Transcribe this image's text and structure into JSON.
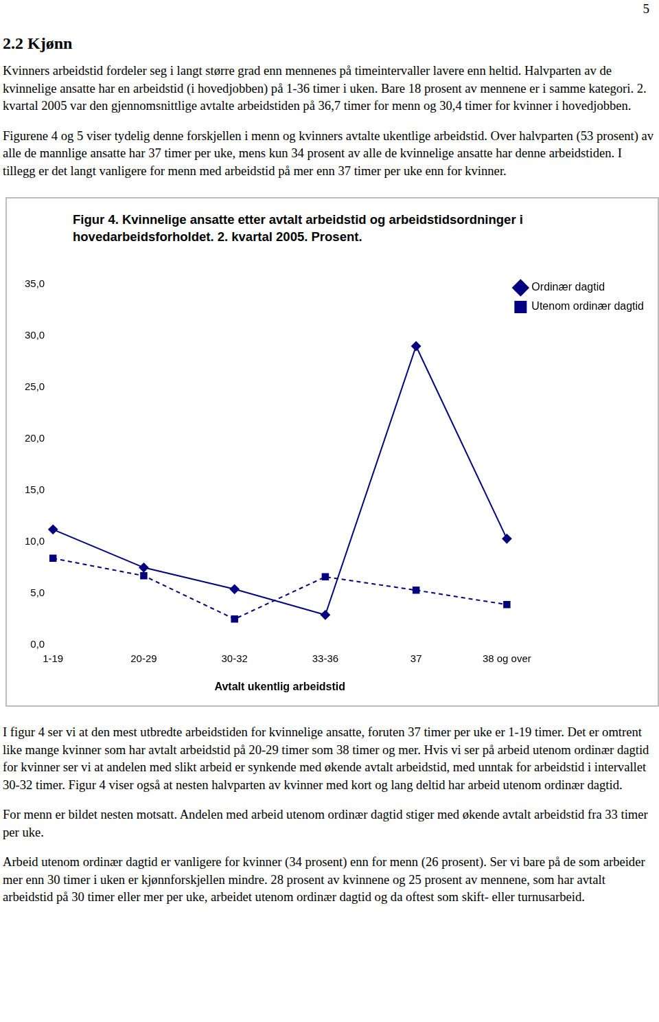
{
  "page": {
    "page_number": "5",
    "heading": "2.2 Kjønn",
    "paragraphs_before": [
      "Kvinners arbeidstid fordeler seg i langt større grad enn mennenes på timeintervaller lavere enn heltid. Halvparten av de kvinnelige ansatte har en arbeidstid (i hovedjobben) på 1-36 timer i uken. Bare 18 prosent av mennene er i samme kategori. 2. kvartal 2005 var den gjennomsnittlige avtalte arbeidstiden på 36,7 timer for menn og 30,4 timer for kvinner i hovedjobben.",
      "Figurene 4 og 5 viser tydelig denne forskjellen i menn og kvinners avtalte ukentlige arbeidstid. Over halvparten (53 prosent) av alle de mannlige ansatte har 37 timer per uke, mens kun 34 prosent av alle de kvinnelige ansatte har denne arbeidstiden. I tillegg er det langt vanligere for menn med arbeidstid på mer enn 37 timer per uke enn for kvinner."
    ],
    "paragraphs_after": [
      "I figur 4 ser vi at den mest utbredte arbeidstiden for kvinnelige ansatte, foruten 37 timer per uke er 1-19 timer. Det er omtrent like mange kvinner som har avtalt arbeidstid på 20-29 timer som 38 timer og mer. Hvis vi ser på arbeid utenom ordinær dagtid for kvinner ser vi at andelen med slikt arbeid er synkende med økende avtalt arbeidstid, med unntak for arbeidstid i intervallet 30-32 timer. Figur 4 viser også at nesten halvparten av kvinner med kort og lang deltid har arbeid utenom ordinær dagtid.",
      "For menn er bildet nesten motsatt. Andelen med arbeid utenom ordinær dagtid stiger med økende avtalt arbeidstid fra 33 timer per uke.",
      "Arbeid utenom ordinær dagtid er vanligere for kvinner (34 prosent) enn for menn (26 prosent). Ser vi bare på de som arbeider mer enn 30 timer i uken er kjønnforskjellen mindre. 28 prosent av kvinnene og 25 prosent av mennene, som har avtalt arbeidstid på 30 timer eller mer per uke, arbeidet utenom ordinær dagtid og da oftest som skift- eller turnusarbeid."
    ]
  },
  "chart_data": {
    "type": "line",
    "title": "Figur 4. Kvinnelige ansatte etter avtalt arbeidstid og arbeidstidsordninger i hovedarbeidsforholdet. 2. kvartal 2005. Prosent.",
    "x_label": "Avtalt ukentlig arbeidstid",
    "categories": [
      "1-19",
      "20-29",
      "30-32",
      "33-36",
      "37",
      "38 og over"
    ],
    "series": [
      {
        "name": "Ordinær dagtid",
        "color": "#000080",
        "marker": "diamond",
        "line_style": "solid",
        "values": [
          11.2,
          7.5,
          5.4,
          2.9,
          29.0,
          10.3
        ]
      },
      {
        "name": "Utenom ordinær dagtid",
        "color": "#000080",
        "marker": "square",
        "line_style": "dashed",
        "values": [
          8.4,
          6.7,
          2.5,
          6.6,
          5.3,
          3.9
        ]
      }
    ],
    "ylim": [
      0,
      35
    ],
    "yticks": [
      {
        "value": 0,
        "label": "0,0"
      },
      {
        "value": 5,
        "label": "5,0"
      },
      {
        "value": 10,
        "label": "10,0"
      },
      {
        "value": 15,
        "label": "15,0"
      },
      {
        "value": 20,
        "label": "20,0"
      },
      {
        "value": 25,
        "label": "25,0"
      },
      {
        "value": 30,
        "label": "30,0"
      },
      {
        "value": 35,
        "label": "35,0"
      }
    ],
    "grid": false,
    "legend": "right"
  }
}
